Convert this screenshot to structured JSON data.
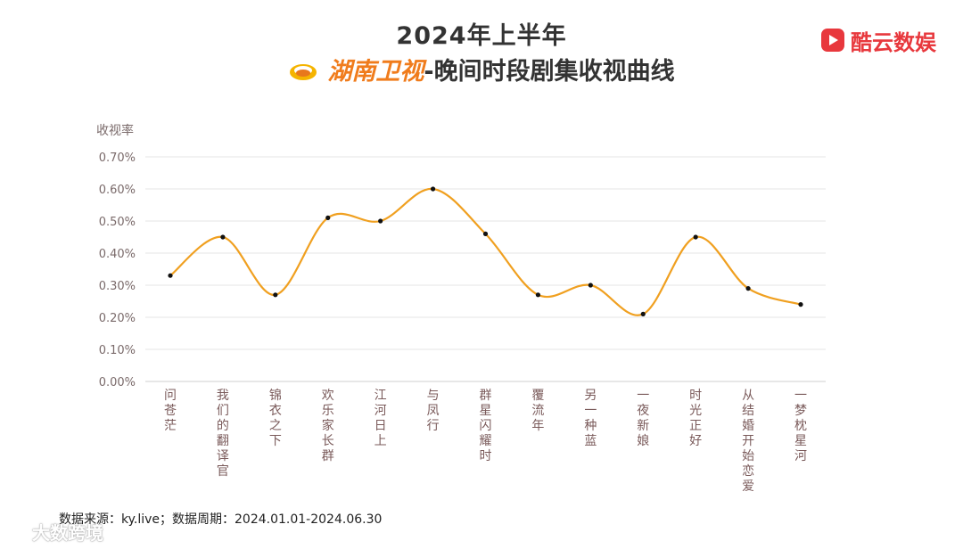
{
  "header": {
    "title_line1": "2024年上半年",
    "channel_name": "湖南卫视",
    "title_suffix": "-晚间时段剧集收视曲线"
  },
  "brand": {
    "name": "酷云数娱",
    "icon": "play-triangle-icon",
    "color": "#e8383d"
  },
  "chart_data": {
    "type": "line",
    "title": "2024年上半年 湖南卫视-晚间时段剧集收视曲线",
    "ylabel": "收视率",
    "xlabel": "",
    "ylim": [
      0,
      0.7
    ],
    "yticks": [
      0.0,
      0.1,
      0.2,
      0.3,
      0.4,
      0.5,
      0.6,
      0.7
    ],
    "ytick_labels": [
      "0.00%",
      "0.10%",
      "0.20%",
      "0.30%",
      "0.40%",
      "0.50%",
      "0.60%",
      "0.70%"
    ],
    "categories": [
      "问苍茫",
      "我们的翻译官",
      "锦衣之下",
      "欢乐家长群",
      "江河日上",
      "与凤行",
      "群星闪耀时",
      "覆流年",
      "另一种蓝",
      "一夜新娘",
      "时光正好",
      "从结婚开始恋爱",
      "一梦枕星河"
    ],
    "series": [
      {
        "name": "收视率",
        "values": [
          0.33,
          0.45,
          0.27,
          0.51,
          0.5,
          0.6,
          0.46,
          0.27,
          0.3,
          0.21,
          0.45,
          0.29,
          0.24
        ],
        "color": "#f0a020"
      }
    ],
    "grid": true,
    "legend": "none",
    "smooth": true
  },
  "footer": {
    "source": "数据来源：ky.live；数据周期：2024.01.01-2024.06.30"
  },
  "watermark": {
    "text": "大数跨境",
    "icon": "link-icon"
  }
}
